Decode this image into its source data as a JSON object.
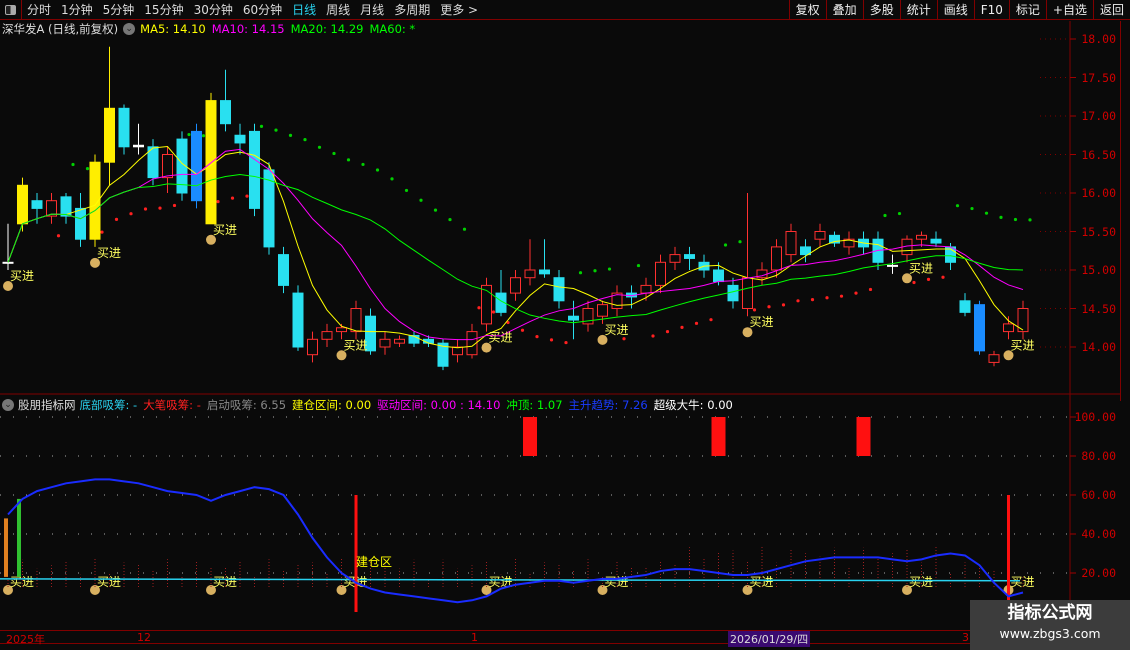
{
  "toolbar": {
    "periods": [
      "分时",
      "1分钟",
      "5分钟",
      "15分钟",
      "30分钟",
      "60分钟",
      "日线",
      "周线",
      "月线",
      "多周期",
      "更多 >"
    ],
    "active_period": "日线",
    "tools": [
      "复权",
      "叠加",
      "多股",
      "统计",
      "画线",
      "F10",
      "标记",
      "+自选",
      "返回"
    ]
  },
  "main": {
    "title": "深华发A (日线,前复权)",
    "ma": [
      {
        "label": "MA5: 14.10",
        "color": "#ffff00"
      },
      {
        "label": "MA10: 14.15",
        "color": "#ff00ff"
      },
      {
        "label": "MA20: 14.29",
        "color": "#00ff00"
      },
      {
        "label": "MA60: *",
        "color": "#00ff00"
      }
    ],
    "price_axis": [
      "18.00",
      "17.50",
      "17.00",
      "16.50",
      "16.00",
      "15.50",
      "15.00",
      "14.50",
      "14.00"
    ],
    "buy_label": "买进",
    "candles": [
      [
        15.1,
        15.6,
        15.0,
        15.1
      ],
      [
        15.6,
        16.2,
        15.5,
        16.1
      ],
      [
        15.9,
        16.0,
        15.6,
        15.8
      ],
      [
        15.7,
        16.0,
        15.6,
        15.9
      ],
      [
        15.95,
        16.0,
        15.6,
        15.7
      ],
      [
        15.8,
        16.0,
        15.3,
        15.4
      ],
      [
        15.4,
        16.5,
        15.3,
        16.4
      ],
      [
        16.4,
        17.9,
        16.1,
        17.1
      ],
      [
        17.1,
        17.15,
        16.5,
        16.6
      ],
      [
        16.6,
        16.9,
        16.5,
        16.62
      ],
      [
        16.6,
        16.7,
        16.1,
        16.2
      ],
      [
        16.2,
        16.6,
        16.0,
        16.5
      ],
      [
        16.7,
        16.8,
        15.9,
        16.0
      ],
      [
        16.8,
        16.9,
        15.8,
        15.9
      ],
      [
        15.6,
        17.3,
        15.6,
        17.2
      ],
      [
        17.2,
        17.6,
        16.8,
        16.9
      ],
      [
        16.75,
        16.9,
        16.5,
        16.65
      ],
      [
        16.8,
        16.9,
        15.7,
        15.8
      ],
      [
        16.3,
        16.4,
        15.2,
        15.3
      ],
      [
        15.2,
        15.3,
        14.7,
        14.8
      ],
      [
        14.7,
        14.8,
        13.95,
        14.0
      ],
      [
        13.9,
        14.2,
        13.8,
        14.1
      ],
      [
        14.1,
        14.3,
        14.0,
        14.2
      ],
      [
        14.2,
        14.3,
        14.1,
        14.25
      ],
      [
        14.2,
        14.6,
        14.1,
        14.5
      ],
      [
        14.4,
        14.5,
        13.9,
        13.95
      ],
      [
        14.0,
        14.2,
        13.9,
        14.1
      ],
      [
        14.05,
        14.15,
        14.0,
        14.1
      ],
      [
        14.15,
        14.2,
        14.0,
        14.05
      ],
      [
        14.1,
        14.15,
        14.0,
        14.05
      ],
      [
        14.05,
        14.1,
        13.7,
        13.75
      ],
      [
        13.9,
        14.1,
        13.8,
        14.0
      ],
      [
        13.9,
        14.3,
        13.85,
        14.2
      ],
      [
        14.3,
        14.9,
        14.2,
        14.8
      ],
      [
        14.7,
        15.0,
        14.4,
        14.45
      ],
      [
        14.7,
        15.0,
        14.6,
        14.9
      ],
      [
        14.9,
        15.4,
        14.8,
        15.0
      ],
      [
        15.0,
        15.4,
        14.9,
        14.95
      ],
      [
        14.9,
        15.0,
        14.5,
        14.6
      ],
      [
        14.4,
        14.6,
        14.1,
        14.35
      ],
      [
        14.3,
        14.6,
        14.2,
        14.5
      ],
      [
        14.4,
        14.6,
        14.3,
        14.55
      ],
      [
        14.5,
        14.8,
        14.4,
        14.7
      ],
      [
        14.7,
        14.8,
        14.5,
        14.65
      ],
      [
        14.7,
        14.9,
        14.6,
        14.8
      ],
      [
        14.8,
        15.2,
        14.7,
        15.1
      ],
      [
        15.1,
        15.3,
        15.0,
        15.2
      ],
      [
        15.2,
        15.3,
        15.0,
        15.15
      ],
      [
        15.1,
        15.2,
        14.9,
        15.0
      ],
      [
        15.0,
        15.1,
        14.8,
        14.85
      ],
      [
        14.8,
        14.9,
        14.5,
        14.6
      ],
      [
        14.5,
        16.0,
        14.4,
        14.9
      ],
      [
        14.9,
        15.1,
        14.8,
        15.0
      ],
      [
        15.0,
        15.4,
        14.9,
        15.3
      ],
      [
        15.2,
        15.6,
        15.1,
        15.5
      ],
      [
        15.3,
        15.4,
        15.1,
        15.2
      ],
      [
        15.4,
        15.6,
        15.3,
        15.5
      ],
      [
        15.45,
        15.5,
        15.3,
        15.35
      ],
      [
        15.3,
        15.5,
        15.2,
        15.4
      ],
      [
        15.4,
        15.5,
        15.2,
        15.3
      ],
      [
        15.4,
        15.5,
        15.0,
        15.1
      ],
      [
        15.05,
        15.2,
        14.95,
        15.06
      ],
      [
        15.2,
        15.45,
        15.1,
        15.4
      ],
      [
        15.4,
        15.5,
        15.3,
        15.45
      ],
      [
        15.4,
        15.5,
        15.3,
        15.35
      ],
      [
        15.3,
        15.35,
        15.0,
        15.1
      ],
      [
        14.6,
        14.7,
        14.4,
        14.45
      ],
      [
        14.55,
        14.6,
        13.9,
        13.95
      ],
      [
        13.8,
        13.95,
        13.75,
        13.9
      ],
      [
        14.2,
        14.4,
        14.1,
        14.3
      ],
      [
        14.2,
        14.6,
        14.1,
        14.5
      ]
    ],
    "buy_signals": [
      0,
      6,
      14,
      23,
      33,
      41,
      51,
      62,
      69
    ]
  },
  "indicator": {
    "name": "股朋指标网",
    "items": [
      {
        "label": "底部吸筹: -",
        "color": "#29d3f0"
      },
      {
        "label": "大笔吸筹: -",
        "color": "#ff2020"
      },
      {
        "label": "启动吸筹: 6.55",
        "color": "#888888"
      },
      {
        "label": "建仓区间: 0.00",
        "color": "#ffff00"
      },
      {
        "label": "驱动区间: 0.00 : 14.10",
        "color": "#ff00ff"
      },
      {
        "label": "冲顶: 1.07",
        "color": "#00ff00"
      },
      {
        "label": "主升趋势: 7.26",
        "color": "#1a3cff"
      },
      {
        "label": "超级大牛: 0.00",
        "color": "#ffffff"
      }
    ],
    "axis": [
      "100.00",
      "80.00",
      "60.00",
      "40.00",
      "20.00"
    ],
    "zone_label": "建仓区",
    "trend_line": [
      50,
      58,
      62,
      64,
      66,
      67,
      68,
      68,
      67,
      66,
      64,
      62,
      61,
      60,
      57,
      60,
      62,
      64,
      63,
      60,
      50,
      38,
      28,
      20,
      15,
      12,
      10,
      9,
      8,
      7,
      6,
      5,
      6,
      8,
      12,
      14,
      15,
      16,
      16,
      15,
      16,
      17,
      17,
      18,
      19,
      21,
      22,
      22,
      21,
      20,
      19,
      19,
      20,
      22,
      24,
      26,
      27,
      28,
      28,
      28,
      28,
      27,
      26,
      27,
      29,
      30,
      29,
      24,
      15,
      8,
      10
    ],
    "super_bull_bars": [
      36,
      49,
      59
    ],
    "entry_lines": [
      24,
      69
    ]
  },
  "dates": {
    "labels": [
      "2025年",
      "12",
      "1",
      "3"
    ],
    "cursor": "2026/01/29/四"
  },
  "watermark": {
    "title": "指标公式网",
    "url": "www.zbgs3.com"
  }
}
